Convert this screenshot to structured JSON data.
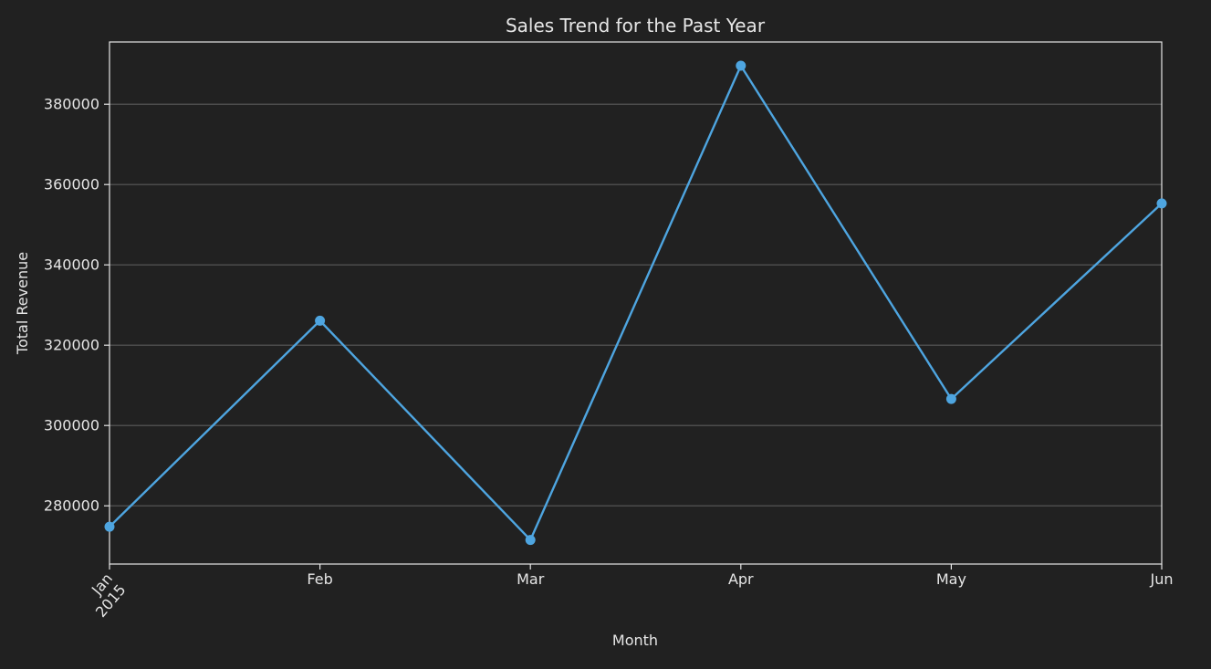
{
  "colors": {
    "background": "#212121",
    "axes": "#e6e6e6",
    "grid": "#5a5a5a",
    "line": "#4ea5e0"
  },
  "chart_data": {
    "type": "line",
    "title": "Sales Trend for the Past Year",
    "xlabel": "Month",
    "ylabel": "Total Revenue",
    "x": [
      "Jan 2015",
      "Feb 2015",
      "Mar 2015",
      "Apr 2015",
      "May 2015",
      "Jun 2015"
    ],
    "x_tick_labels": [
      "Jan",
      "Feb",
      "Mar",
      "Apr",
      "May",
      "Jun"
    ],
    "x_tick_sublabel": "2015",
    "values": [
      274800,
      326100,
      271500,
      389600,
      306600,
      355300
    ],
    "ylim": [
      265500,
      395500
    ],
    "y_ticks": [
      280000,
      300000,
      320000,
      340000,
      360000,
      380000
    ],
    "grid": "y",
    "marker": "circle"
  }
}
